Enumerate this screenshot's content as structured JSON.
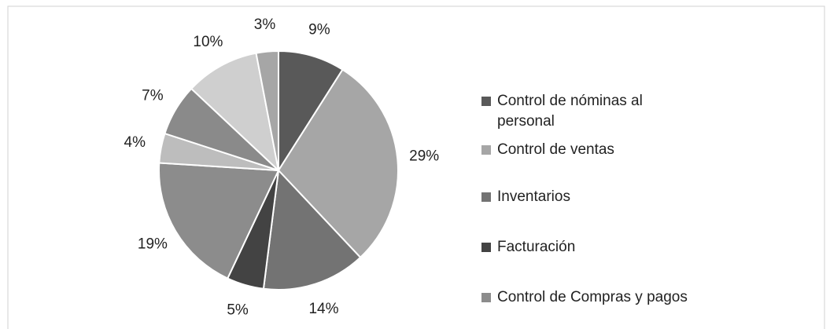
{
  "chart_data": {
    "type": "pie",
    "categories": [
      "Control de nóminas al personal",
      "Control de ventas",
      "Inventarios",
      "Facturación",
      "Control de Compras y pagos",
      null,
      null,
      null,
      null
    ],
    "values": [
      9,
      29,
      14,
      5,
      19,
      4,
      7,
      10,
      3
    ],
    "value_labels": [
      "9%",
      "29%",
      "14%",
      "5%",
      "19%",
      "4%",
      "7%",
      "10%",
      "3%"
    ],
    "colors": [
      "#595959",
      "#a6a6a6",
      "#737373",
      "#434343",
      "#8c8c8c",
      "#bdbdbd",
      "#8a8a8a",
      "#cfcfcf",
      "#a6a6a6"
    ]
  }
}
